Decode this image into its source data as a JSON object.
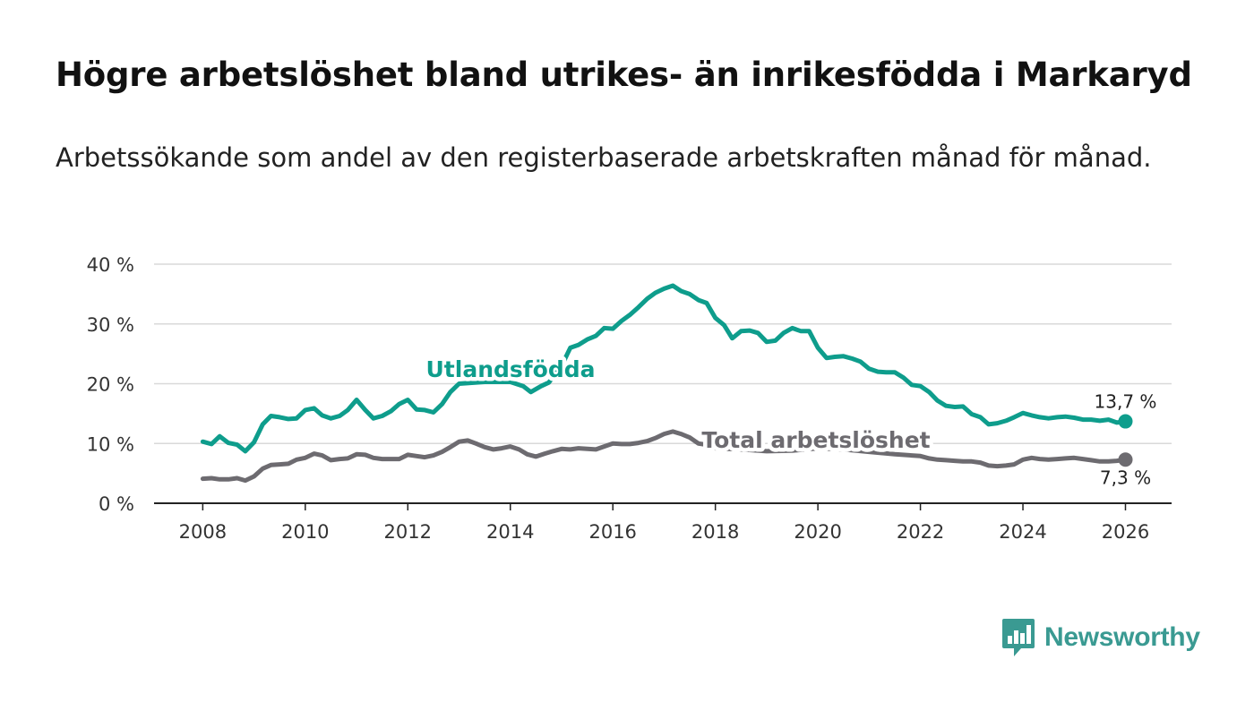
{
  "title": "Högre arbetslöshet bland utrikes- än inrikesfödda i Markaryd",
  "subtitle": "Arbetssökande som andel av den registerbaserade arbetskraften månad för månad.",
  "brand": {
    "name": "Newsworthy",
    "icon": "newsworthy-logo-icon",
    "color": "#3a9a92"
  },
  "chart_data": {
    "type": "line",
    "title": "Högre arbetslöshet bland utrikes- än inrikesfödda i Markaryd",
    "xlabel": "",
    "ylabel": "",
    "xlim": [
      2007.05,
      2026.9
    ],
    "ylim": [
      0,
      40
    ],
    "x_ticks": [
      2008,
      2010,
      2012,
      2014,
      2016,
      2018,
      2020,
      2022,
      2024,
      2026
    ],
    "x_tick_labels": [
      "2008",
      "2010",
      "2012",
      "2014",
      "2016",
      "2018",
      "2020",
      "2022",
      "2024",
      "2026"
    ],
    "y_ticks": [
      0,
      10,
      20,
      30,
      40
    ],
    "y_tick_labels": [
      "0 %",
      "10 %",
      "20 %",
      "30 %",
      "40 %"
    ],
    "grid": true,
    "series": [
      {
        "name": "Utlandsfödda",
        "color": "#0e9d8c",
        "end_label": "13,7 %",
        "points": [
          [
            2008.0,
            10.3
          ],
          [
            2008.17,
            9.9
          ],
          [
            2008.33,
            11.2
          ],
          [
            2008.5,
            10.1
          ],
          [
            2008.67,
            9.8
          ],
          [
            2008.83,
            8.7
          ],
          [
            2009.0,
            10.2
          ],
          [
            2009.17,
            13.2
          ],
          [
            2009.33,
            14.6
          ],
          [
            2009.5,
            14.4
          ],
          [
            2009.67,
            14.1
          ],
          [
            2009.83,
            14.2
          ],
          [
            2010.0,
            15.6
          ],
          [
            2010.17,
            15.9
          ],
          [
            2010.33,
            14.7
          ],
          [
            2010.5,
            14.2
          ],
          [
            2010.67,
            14.6
          ],
          [
            2010.83,
            15.6
          ],
          [
            2011.0,
            17.3
          ],
          [
            2011.17,
            15.6
          ],
          [
            2011.33,
            14.2
          ],
          [
            2011.5,
            14.6
          ],
          [
            2011.67,
            15.4
          ],
          [
            2011.83,
            16.6
          ],
          [
            2012.0,
            17.3
          ],
          [
            2012.17,
            15.7
          ],
          [
            2012.33,
            15.6
          ],
          [
            2012.5,
            15.2
          ],
          [
            2012.67,
            16.6
          ],
          [
            2012.83,
            18.6
          ],
          [
            2013.0,
            20.0
          ],
          [
            2013.5,
            20.3
          ],
          [
            2014.0,
            20.3
          ],
          [
            2014.25,
            19.6
          ],
          [
            2014.4,
            18.6
          ],
          [
            2014.6,
            19.6
          ],
          [
            2014.75,
            20.2
          ],
          [
            2015.0,
            23.0
          ],
          [
            2015.17,
            26.0
          ],
          [
            2015.33,
            26.5
          ],
          [
            2015.5,
            27.4
          ],
          [
            2015.67,
            28.0
          ],
          [
            2015.83,
            29.3
          ],
          [
            2016.0,
            29.2
          ],
          [
            2016.17,
            30.5
          ],
          [
            2016.33,
            31.5
          ],
          [
            2016.5,
            32.8
          ],
          [
            2016.67,
            34.2
          ],
          [
            2016.83,
            35.2
          ],
          [
            2017.0,
            35.9
          ],
          [
            2017.17,
            36.4
          ],
          [
            2017.33,
            35.5
          ],
          [
            2017.5,
            35.0
          ],
          [
            2017.67,
            34.0
          ],
          [
            2017.83,
            33.5
          ],
          [
            2018.0,
            31.0
          ],
          [
            2018.17,
            29.8
          ],
          [
            2018.33,
            27.6
          ],
          [
            2018.5,
            28.8
          ],
          [
            2018.67,
            28.9
          ],
          [
            2018.83,
            28.5
          ],
          [
            2019.0,
            27.0
          ],
          [
            2019.17,
            27.2
          ],
          [
            2019.33,
            28.5
          ],
          [
            2019.5,
            29.3
          ],
          [
            2019.67,
            28.8
          ],
          [
            2019.83,
            28.8
          ],
          [
            2020.0,
            26.0
          ],
          [
            2020.17,
            24.3
          ],
          [
            2020.33,
            24.5
          ],
          [
            2020.5,
            24.6
          ],
          [
            2020.67,
            24.2
          ],
          [
            2020.83,
            23.7
          ],
          [
            2021.0,
            22.5
          ],
          [
            2021.17,
            22.0
          ],
          [
            2021.33,
            21.9
          ],
          [
            2021.5,
            21.9
          ],
          [
            2021.67,
            21.0
          ],
          [
            2021.83,
            19.8
          ],
          [
            2022.0,
            19.6
          ],
          [
            2022.17,
            18.6
          ],
          [
            2022.33,
            17.2
          ],
          [
            2022.5,
            16.3
          ],
          [
            2022.67,
            16.1
          ],
          [
            2022.83,
            16.2
          ],
          [
            2023.0,
            14.9
          ],
          [
            2023.17,
            14.4
          ],
          [
            2023.33,
            13.2
          ],
          [
            2023.5,
            13.4
          ],
          [
            2023.67,
            13.8
          ],
          [
            2023.83,
            14.4
          ],
          [
            2024.0,
            15.1
          ],
          [
            2024.17,
            14.7
          ],
          [
            2024.33,
            14.4
          ],
          [
            2024.5,
            14.2
          ],
          [
            2024.67,
            14.4
          ],
          [
            2024.83,
            14.5
          ],
          [
            2025.0,
            14.3
          ],
          [
            2025.17,
            14.0
          ],
          [
            2025.33,
            14.0
          ],
          [
            2025.5,
            13.8
          ],
          [
            2025.67,
            14.0
          ],
          [
            2025.83,
            13.5
          ],
          [
            2026.0,
            13.7
          ]
        ]
      },
      {
        "name": "Total arbetslöshet",
        "color": "#6d6b70",
        "end_label": "7,3 %",
        "points": [
          [
            2008.0,
            4.1
          ],
          [
            2008.17,
            4.2
          ],
          [
            2008.33,
            4.0
          ],
          [
            2008.5,
            4.0
          ],
          [
            2008.67,
            4.2
          ],
          [
            2008.83,
            3.8
          ],
          [
            2009.0,
            4.5
          ],
          [
            2009.17,
            5.8
          ],
          [
            2009.33,
            6.4
          ],
          [
            2009.5,
            6.5
          ],
          [
            2009.67,
            6.6
          ],
          [
            2009.83,
            7.3
          ],
          [
            2010.0,
            7.6
          ],
          [
            2010.17,
            8.3
          ],
          [
            2010.33,
            8.0
          ],
          [
            2010.5,
            7.2
          ],
          [
            2010.67,
            7.4
          ],
          [
            2010.83,
            7.5
          ],
          [
            2011.0,
            8.2
          ],
          [
            2011.17,
            8.1
          ],
          [
            2011.33,
            7.6
          ],
          [
            2011.5,
            7.4
          ],
          [
            2011.67,
            7.4
          ],
          [
            2011.83,
            7.4
          ],
          [
            2012.0,
            8.1
          ],
          [
            2012.17,
            7.9
          ],
          [
            2012.33,
            7.7
          ],
          [
            2012.5,
            8.0
          ],
          [
            2012.67,
            8.6
          ],
          [
            2012.83,
            9.4
          ],
          [
            2013.0,
            10.3
          ],
          [
            2013.17,
            10.5
          ],
          [
            2013.33,
            10.0
          ],
          [
            2013.5,
            9.4
          ],
          [
            2013.67,
            9.0
          ],
          [
            2013.83,
            9.2
          ],
          [
            2014.0,
            9.5
          ],
          [
            2014.17,
            9.0
          ],
          [
            2014.33,
            8.2
          ],
          [
            2014.5,
            7.8
          ],
          [
            2014.67,
            8.3
          ],
          [
            2014.83,
            8.7
          ],
          [
            2015.0,
            9.1
          ],
          [
            2015.17,
            9.0
          ],
          [
            2015.33,
            9.2
          ],
          [
            2015.5,
            9.1
          ],
          [
            2015.67,
            9.0
          ],
          [
            2015.83,
            9.5
          ],
          [
            2016.0,
            10.0
          ],
          [
            2016.17,
            9.9
          ],
          [
            2016.33,
            9.9
          ],
          [
            2016.5,
            10.1
          ],
          [
            2016.67,
            10.4
          ],
          [
            2016.83,
            10.9
          ],
          [
            2017.0,
            11.6
          ],
          [
            2017.17,
            12.0
          ],
          [
            2017.33,
            11.6
          ],
          [
            2017.5,
            11.0
          ],
          [
            2017.67,
            10.0
          ],
          [
            2017.83,
            9.8
          ],
          [
            2018.0,
            9.2
          ],
          [
            2018.5,
            9.0
          ],
          [
            2019.0,
            8.7
          ],
          [
            2019.5,
            8.8
          ],
          [
            2020.0,
            9.2
          ],
          [
            2020.5,
            9.0
          ],
          [
            2021.0,
            8.6
          ],
          [
            2021.5,
            8.2
          ],
          [
            2021.83,
            8.0
          ],
          [
            2022.0,
            7.9
          ],
          [
            2022.17,
            7.5
          ],
          [
            2022.33,
            7.3
          ],
          [
            2022.5,
            7.2
          ],
          [
            2022.67,
            7.1
          ],
          [
            2022.83,
            7.0
          ],
          [
            2023.0,
            7.0
          ],
          [
            2023.17,
            6.8
          ],
          [
            2023.33,
            6.3
          ],
          [
            2023.5,
            6.2
          ],
          [
            2023.67,
            6.3
          ],
          [
            2023.83,
            6.5
          ],
          [
            2024.0,
            7.3
          ],
          [
            2024.17,
            7.6
          ],
          [
            2024.33,
            7.4
          ],
          [
            2024.5,
            7.3
          ],
          [
            2024.67,
            7.4
          ],
          [
            2024.83,
            7.5
          ],
          [
            2025.0,
            7.6
          ],
          [
            2025.17,
            7.4
          ],
          [
            2025.33,
            7.2
          ],
          [
            2025.5,
            7.0
          ],
          [
            2025.67,
            7.0
          ],
          [
            2025.83,
            7.1
          ],
          [
            2026.0,
            7.3
          ]
        ]
      }
    ]
  }
}
